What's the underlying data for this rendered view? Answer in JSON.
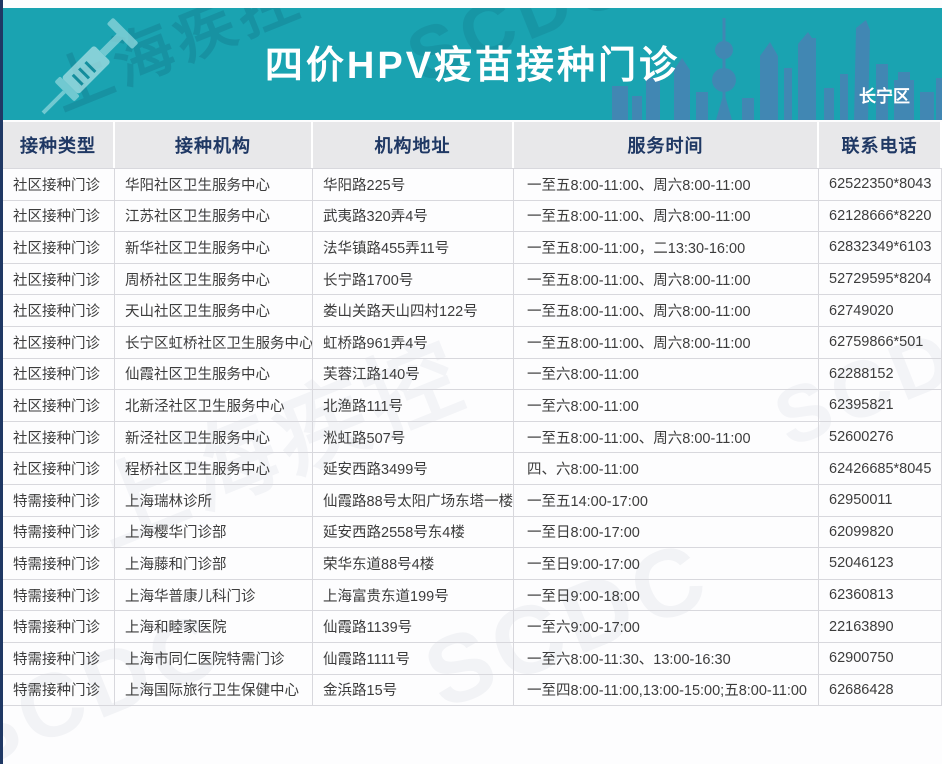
{
  "banner": {
    "title": "四价HPV疫苗接种门诊",
    "district": "长宁区",
    "colors": {
      "banner_teal": "#1aa3b1",
      "skyline_blue": "#4a82b4",
      "navy": "#1f3864",
      "header_bg": "#e8e8ea",
      "body_text": "#3c3c3c"
    }
  },
  "watermark": {
    "text_cn": "上海疾控",
    "text_en": "SCDC",
    "text_full": "上海疾控 SCDC"
  },
  "table": {
    "columns": [
      "接种类型",
      "接种机构",
      "机构地址",
      "服务时间",
      "联系电话"
    ],
    "rows": [
      {
        "type": "社区接种门诊",
        "org": "华阳社区卫生服务中心",
        "address": "华阳路225号",
        "hours": "一至五8:00-11:00、周六8:00-11:00",
        "phone": "62522350*8043"
      },
      {
        "type": "社区接种门诊",
        "org": "江苏社区卫生服务中心",
        "address": "武夷路320弄4号",
        "hours": "一至五8:00-11:00、周六8:00-11:00",
        "phone": "62128666*8220"
      },
      {
        "type": "社区接种门诊",
        "org": "新华社区卫生服务中心",
        "address": "法华镇路455弄11号",
        "hours": "一至五8:00-11:00，二13:30-16:00",
        "phone": "62832349*6103"
      },
      {
        "type": "社区接种门诊",
        "org": "周桥社区卫生服务中心",
        "address": "长宁路1700号",
        "hours": "一至五8:00-11:00、周六8:00-11:00",
        "phone": "52729595*8204"
      },
      {
        "type": "社区接种门诊",
        "org": "天山社区卫生服务中心",
        "address": "娄山关路天山四村122号",
        "hours": "一至五8:00-11:00、周六8:00-11:00",
        "phone": "62749020"
      },
      {
        "type": "社区接种门诊",
        "org": "长宁区虹桥社区卫生服务中心",
        "address": "虹桥路961弄4号",
        "hours": "一至五8:00-11:00、周六8:00-11:00",
        "phone": "62759866*501"
      },
      {
        "type": "社区接种门诊",
        "org": "仙霞社区卫生服务中心",
        "address": "芙蓉江路140号",
        "hours": "一至六8:00-11:00",
        "phone": "62288152"
      },
      {
        "type": "社区接种门诊",
        "org": "北新泾社区卫生服务中心",
        "address": "北渔路111号",
        "hours": "一至六8:00-11:00",
        "phone": "62395821"
      },
      {
        "type": "社区接种门诊",
        "org": "新泾社区卫生服务中心",
        "address": "淞虹路507号",
        "hours": "一至五8:00-11:00、周六8:00-11:00",
        "phone": "52600276"
      },
      {
        "type": "社区接种门诊",
        "org": "程桥社区卫生服务中心",
        "address": "延安西路3499号",
        "hours": "四、六8:00-11:00",
        "phone": "62426685*8045"
      },
      {
        "type": "特需接种门诊",
        "org": "上海瑞林诊所",
        "address": "仙霞路88号太阳广场东塔一楼",
        "hours": "一至五14:00-17:00",
        "phone": "62950011"
      },
      {
        "type": "特需接种门诊",
        "org": "上海樱华门诊部",
        "address": "延安西路2558号东4楼",
        "hours": "一至日8:00-17:00",
        "phone": "62099820"
      },
      {
        "type": "特需接种门诊",
        "org": "上海藤和门诊部",
        "address": "荣华东道88号4楼",
        "hours": "一至日9:00-17:00",
        "phone": "52046123"
      },
      {
        "type": "特需接种门诊",
        "org": "上海华普康儿科门诊",
        "address": "上海富贵东道199号",
        "hours": "一至日9:00-18:00",
        "phone": "62360813"
      },
      {
        "type": "特需接种门诊",
        "org": "上海和睦家医院",
        "address": "仙霞路1139号",
        "hours": "一至六9:00-17:00",
        "phone": "22163890"
      },
      {
        "type": "特需接种门诊",
        "org": "上海市同仁医院特需门诊",
        "address": "仙霞路1111号",
        "hours": "一至六8:00-11:30、13:00-16:30",
        "phone": "62900750"
      },
      {
        "type": "特需接种门诊",
        "org": "上海国际旅行卫生保健中心",
        "address": "金浜路15号",
        "hours": "一至四8:00-11:00,13:00-15:00;五8:00-11:00",
        "phone": "62686428"
      }
    ]
  }
}
